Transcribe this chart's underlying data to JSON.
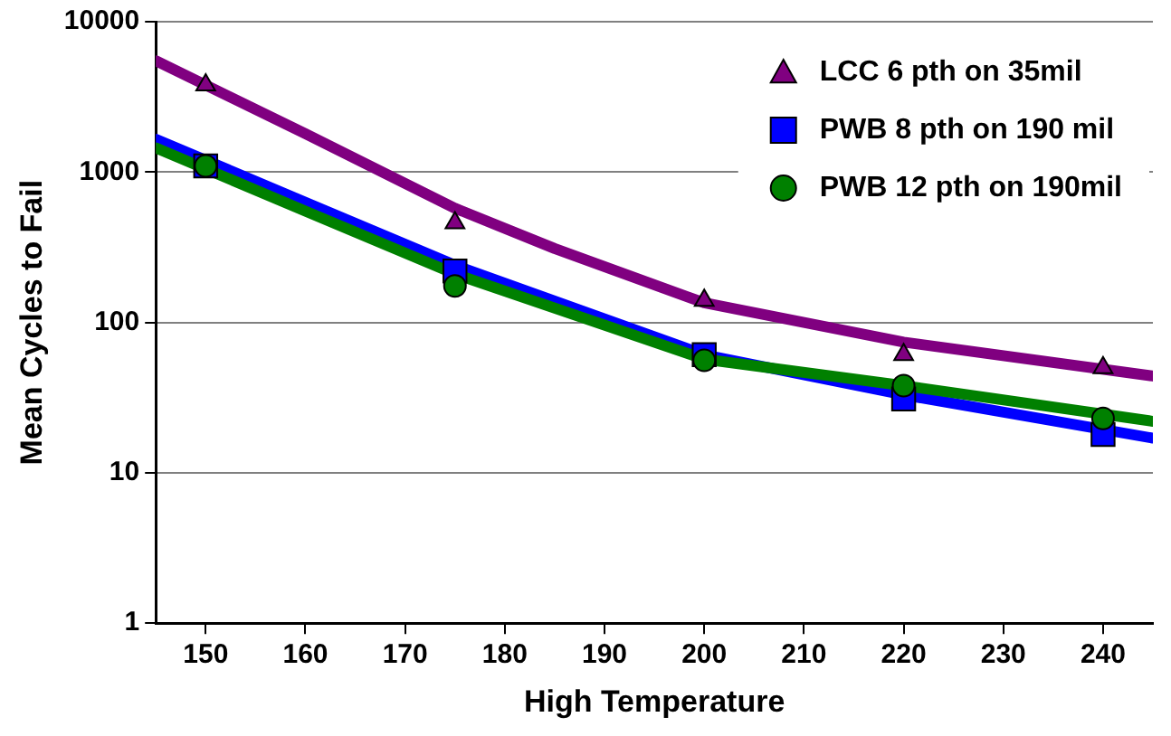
{
  "chart_data": {
    "type": "scatter",
    "xlabel": "High Temperature",
    "ylabel": "Mean Cycles to Fail",
    "log": "y",
    "grid": "y",
    "legend": "top right",
    "xlim": [
      145,
      245
    ],
    "xticks": [
      150,
      160,
      170,
      180,
      190,
      200,
      210,
      220,
      230,
      240
    ],
    "ylim": [
      1,
      10000
    ],
    "yticks": [
      1,
      10,
      100,
      1000,
      10000
    ],
    "series": [
      {
        "type": "line",
        "color": "#800080",
        "marker": "none",
        "x": [
          145,
          160,
          175,
          185,
          200,
          220,
          245
        ],
        "values": [
          5500,
          1800,
          575,
          310,
          135,
          74,
          44
        ]
      },
      {
        "type": "line",
        "color": "#0000ff",
        "marker": "none",
        "x": [
          145,
          160,
          175,
          200,
          220,
          245
        ],
        "values": [
          1650,
          630,
          240,
          61,
          33,
          17
        ]
      },
      {
        "type": "line",
        "color": "#008000",
        "marker": "none",
        "x": [
          145,
          160,
          175,
          200,
          220,
          245
        ],
        "values": [
          1450,
          550,
          210,
          57,
          38,
          22
        ]
      },
      {
        "name": "LCC 6 pth on 35mil",
        "type": "scatter",
        "color": "#800080",
        "marker": "triangle",
        "x": [
          150,
          175,
          200,
          220,
          240
        ],
        "values": [
          3800,
          460,
          140,
          61,
          50
        ]
      },
      {
        "name": "PWB 8 pth on 190 mil",
        "type": "scatter",
        "color": "#0000ff",
        "marker": "square",
        "x": [
          150,
          175,
          200,
          220,
          240
        ],
        "values": [
          1100,
          220,
          61,
          31,
          18
        ]
      },
      {
        "name": "PWB 12 pth on 190mil",
        "type": "scatter",
        "color": "#008000",
        "marker": "circle",
        "x": [
          150,
          175,
          200,
          220,
          240
        ],
        "values": [
          1100,
          175,
          56,
          38,
          23
        ]
      }
    ]
  }
}
